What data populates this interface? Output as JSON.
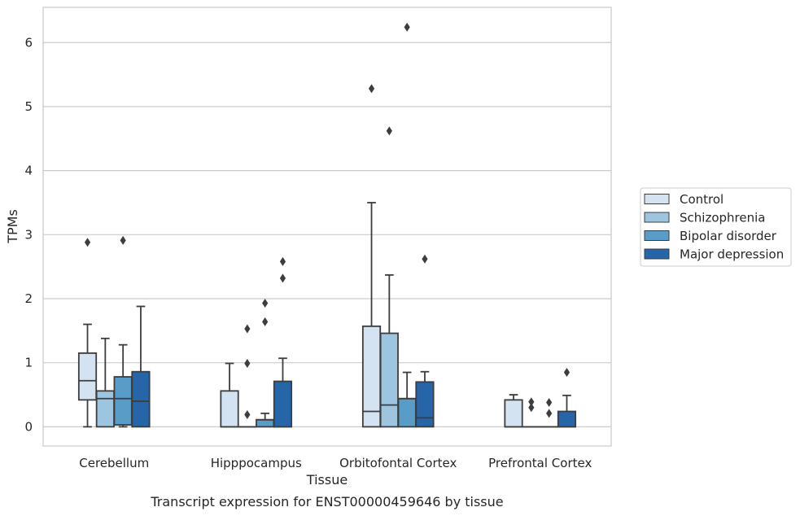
{
  "chart_data": {
    "type": "box",
    "caption": "Transcript expression for ENST00000459646 by tissue",
    "xlabel": "Tissue",
    "ylabel": "TPMs",
    "ylim": [
      -0.3,
      6.55
    ],
    "yticks": [
      "0",
      "1",
      "2",
      "3",
      "4",
      "5",
      "6"
    ],
    "grid": "horizontal",
    "legend_position": "right",
    "categories": [
      "Cerebellum",
      "Hipppocampus",
      "Orbitofontal Cortex",
      "Prefrontal Cortex"
    ],
    "series": [
      {
        "name": "Control",
        "color": "#d4e3f2",
        "boxes": [
          {
            "whisker_low": 0.0,
            "q1": 0.42,
            "median": 0.72,
            "q3": 1.15,
            "whisker_high": 1.6,
            "outliers": [
              2.88
            ]
          },
          {
            "whisker_low": 0.0,
            "q1": 0.0,
            "median": 0.0,
            "q3": 0.56,
            "whisker_high": 0.99,
            "outliers": []
          },
          {
            "whisker_low": 0.0,
            "q1": 0.0,
            "median": 0.24,
            "q3": 1.57,
            "whisker_high": 3.5,
            "outliers": [
              5.28
            ]
          },
          {
            "whisker_low": 0.0,
            "q1": 0.0,
            "median": 0.0,
            "q3": 0.42,
            "whisker_high": 0.5,
            "outliers": []
          }
        ]
      },
      {
        "name": "Schizophrenia",
        "color": "#9dc5df",
        "boxes": [
          {
            "whisker_low": 0.0,
            "q1": 0.0,
            "median": 0.44,
            "q3": 0.56,
            "whisker_high": 1.38,
            "outliers": []
          },
          {
            "whisker_low": 0.0,
            "q1": 0.0,
            "median": 0.0,
            "q3": 0.0,
            "whisker_high": 0.0,
            "outliers": [
              0.19,
              0.99,
              1.53
            ]
          },
          {
            "whisker_low": 0.0,
            "q1": 0.0,
            "median": 0.34,
            "q3": 1.46,
            "whisker_high": 2.37,
            "outliers": [
              4.62
            ]
          },
          {
            "whisker_low": 0.0,
            "q1": 0.0,
            "median": 0.0,
            "q3": 0.0,
            "whisker_high": 0.0,
            "outliers": [
              0.3,
              0.39
            ]
          }
        ]
      },
      {
        "name": "Bipolar disorder",
        "color": "#5a9cc8",
        "boxes": [
          {
            "whisker_low": 0.0,
            "q1": 0.03,
            "median": 0.44,
            "q3": 0.78,
            "whisker_high": 1.28,
            "outliers": [
              2.91
            ]
          },
          {
            "whisker_low": 0.0,
            "q1": 0.0,
            "median": 0.11,
            "q3": 0.11,
            "whisker_high": 0.21,
            "outliers": [
              1.64,
              1.93
            ]
          },
          {
            "whisker_low": 0.0,
            "q1": 0.0,
            "median": 0.44,
            "q3": 0.44,
            "whisker_high": 0.85,
            "outliers": [
              6.24
            ]
          },
          {
            "whisker_low": 0.0,
            "q1": 0.0,
            "median": 0.0,
            "q3": 0.0,
            "whisker_high": 0.0,
            "outliers": [
              0.21,
              0.38
            ]
          }
        ]
      },
      {
        "name": "Major depression",
        "color": "#2565a8",
        "boxes": [
          {
            "whisker_low": 0.0,
            "q1": 0.0,
            "median": 0.4,
            "q3": 0.86,
            "whisker_high": 1.88,
            "outliers": []
          },
          {
            "whisker_low": 0.0,
            "q1": 0.0,
            "median": 0.0,
            "q3": 0.71,
            "whisker_high": 1.07,
            "outliers": [
              2.32,
              2.58
            ]
          },
          {
            "whisker_low": 0.0,
            "q1": 0.0,
            "median": 0.14,
            "q3": 0.7,
            "whisker_high": 0.86,
            "outliers": [
              2.62
            ]
          },
          {
            "whisker_low": 0.0,
            "q1": 0.0,
            "median": 0.0,
            "q3": 0.24,
            "whisker_high": 0.49,
            "outliers": [
              0.85
            ]
          }
        ]
      }
    ]
  }
}
